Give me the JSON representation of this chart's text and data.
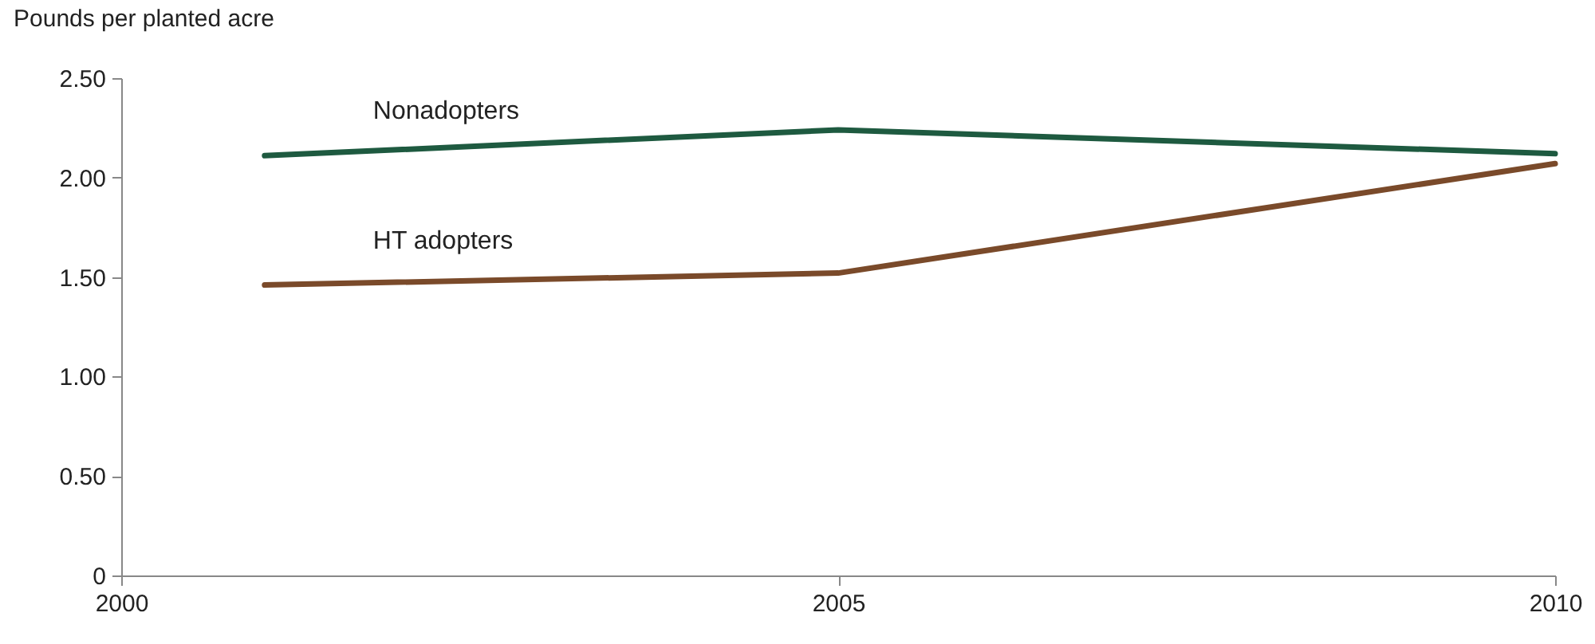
{
  "chart_data": {
    "type": "line",
    "ylabel": "Pounds per planted acre",
    "x": [
      2001,
      2005,
      2010
    ],
    "series": [
      {
        "name": "Nonadopters",
        "color": "#1e5a40",
        "values": [
          2.11,
          2.24,
          2.12
        ]
      },
      {
        "name": "HT adopters",
        "color": "#7a4a2a",
        "values": [
          1.46,
          1.52,
          2.07
        ]
      }
    ],
    "xlim": [
      2000,
      2010
    ],
    "xticks": [
      2000,
      2005,
      2010
    ],
    "ylim": [
      0,
      2.5
    ],
    "yticks": [
      {
        "value": 0,
        "label": "0"
      },
      {
        "value": 0.5,
        "label": "0.50"
      },
      {
        "value": 1,
        "label": "1.00"
      },
      {
        "value": 1.5,
        "label": "1.50"
      },
      {
        "value": 2,
        "label": "2.00"
      },
      {
        "value": 2.5,
        "label": "2.50"
      }
    ],
    "grid": false,
    "legend": false,
    "marker": "none",
    "line_style": "solid"
  }
}
